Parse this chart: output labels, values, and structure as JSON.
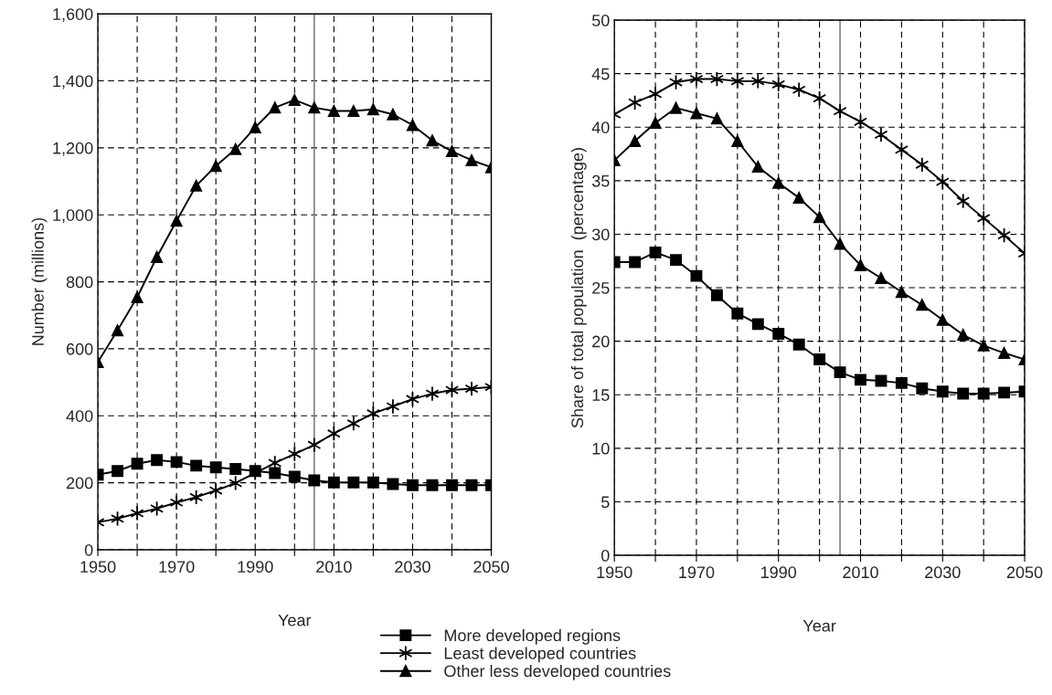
{
  "chart_data": [
    {
      "type": "line",
      "xlabel": "Year",
      "ylabel": "Number (millions)",
      "x": [
        1950,
        1955,
        1960,
        1965,
        1970,
        1975,
        1980,
        1985,
        1990,
        1995,
        2000,
        2005,
        2010,
        2015,
        2020,
        2025,
        2030,
        2035,
        2040,
        2045,
        2050
      ],
      "series": [
        {
          "name": "More developed regions",
          "color": "#000000",
          "marker": "square",
          "values": [
            224,
            235,
            257,
            268,
            262,
            251,
            246,
            241,
            235,
            229,
            218,
            207,
            201,
            201,
            201,
            196,
            193,
            193,
            193,
            193,
            193
          ]
        },
        {
          "name": "Least developed countries",
          "color": "#000000",
          "marker": "cross",
          "values": [
            82,
            93,
            109,
            123,
            141,
            157,
            177,
            199,
            229,
            259,
            286,
            313,
            347,
            377,
            407,
            428,
            450,
            466,
            477,
            481,
            486
          ]
        },
        {
          "name": "Other less developed countries",
          "color": "#000000",
          "marker": "triangle",
          "values": [
            560,
            655,
            754,
            874,
            982,
            1087,
            1146,
            1196,
            1261,
            1320,
            1343,
            1320,
            1310,
            1310,
            1315,
            1300,
            1268,
            1222,
            1190,
            1163,
            1142
          ]
        }
      ],
      "xlim": [
        1950,
        2050
      ],
      "xticks": [
        1950,
        {
          "value": 1960,
          "label": null
        },
        1970,
        {
          "value": 1980,
          "label": null
        },
        1990,
        {
          "value": 2000,
          "label": null
        },
        2010,
        {
          "value": 2020,
          "label": null
        },
        2030,
        {
          "value": 2040,
          "label": null
        },
        2050
      ],
      "ylim": [
        0,
        1600
      ],
      "yticks": [
        0,
        200,
        400,
        600,
        800,
        {
          "value": 1000,
          "label": "1,000"
        },
        {
          "value": 1200,
          "label": "1,200"
        },
        {
          "value": 1400,
          "label": "1,400"
        },
        {
          "value": 1600,
          "label": "1,600"
        }
      ],
      "ref_lines": [
        {
          "axis": "x",
          "value": 2005,
          "color": "#808080"
        }
      ],
      "grid": true,
      "line_style": "solid",
      "legend": "bottom"
    },
    {
      "type": "line",
      "xlabel": "Year",
      "ylabel": "Share of total population  (percentage)",
      "x": [
        1950,
        1955,
        1960,
        1965,
        1970,
        1975,
        1980,
        1985,
        1990,
        1995,
        2000,
        2005,
        2010,
        2015,
        2020,
        2025,
        2030,
        2035,
        2040,
        2045,
        2050
      ],
      "series": [
        {
          "color": "#000000",
          "marker": "square",
          "values": [
            27.4,
            27.4,
            28.3,
            27.6,
            26.1,
            24.3,
            22.6,
            21.6,
            20.7,
            19.7,
            18.3,
            17.1,
            16.4,
            16.3,
            16.1,
            15.6,
            15.3,
            15.1,
            15.1,
            15.2,
            15.3
          ]
        },
        {
          "color": "#000000",
          "marker": "cross",
          "values": [
            41.2,
            42.3,
            43.1,
            44.2,
            44.5,
            44.5,
            44.3,
            44.3,
            44.0,
            43.5,
            42.7,
            41.5,
            40.5,
            39.3,
            37.9,
            36.5,
            34.9,
            33.1,
            31.5,
            29.9,
            28.2
          ]
        },
        {
          "color": "#000000",
          "marker": "triangle",
          "values": [
            36.9,
            38.7,
            40.4,
            41.8,
            41.3,
            40.8,
            38.7,
            36.3,
            34.8,
            33.4,
            31.6,
            29.1,
            27.1,
            25.9,
            24.6,
            23.4,
            22.0,
            20.6,
            19.6,
            18.9,
            18.3
          ]
        }
      ],
      "xlim": [
        1950,
        2050
      ],
      "xticks": [
        1950,
        {
          "value": 1960,
          "label": null
        },
        1970,
        {
          "value": 1980,
          "label": null
        },
        1990,
        {
          "value": 2000,
          "label": null
        },
        2010,
        {
          "value": 2020,
          "label": null
        },
        2030,
        {
          "value": 2040,
          "label": null
        },
        2050
      ],
      "ylim": [
        0,
        50
      ],
      "yticks": [
        0,
        5,
        10,
        15,
        20,
        25,
        30,
        35,
        40,
        45,
        50
      ],
      "ref_lines": [
        {
          "axis": "x",
          "value": 2005,
          "color": "#808080"
        }
      ],
      "grid": true,
      "line_style": "solid"
    }
  ]
}
